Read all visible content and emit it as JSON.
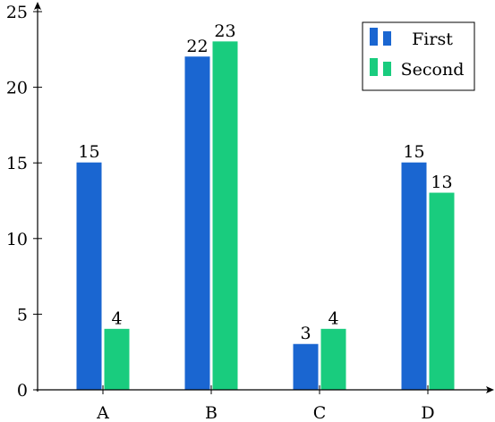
{
  "chart_data": {
    "type": "bar",
    "title": "",
    "xlabel": "",
    "ylabel": "",
    "categories": [
      "A",
      "B",
      "C",
      "D"
    ],
    "series": [
      {
        "name": "First",
        "values": [
          15,
          22,
          3,
          15
        ],
        "color": "#1a66d1"
      },
      {
        "name": "Second",
        "values": [
          4,
          23,
          4,
          13
        ],
        "color": "#19cc7e"
      }
    ],
    "ylim": [
      0,
      25
    ],
    "yticks": [
      "0",
      "5",
      "10",
      "15",
      "20",
      "25"
    ],
    "grid": false,
    "legend_position": "top-right",
    "show_data_labels": true
  }
}
